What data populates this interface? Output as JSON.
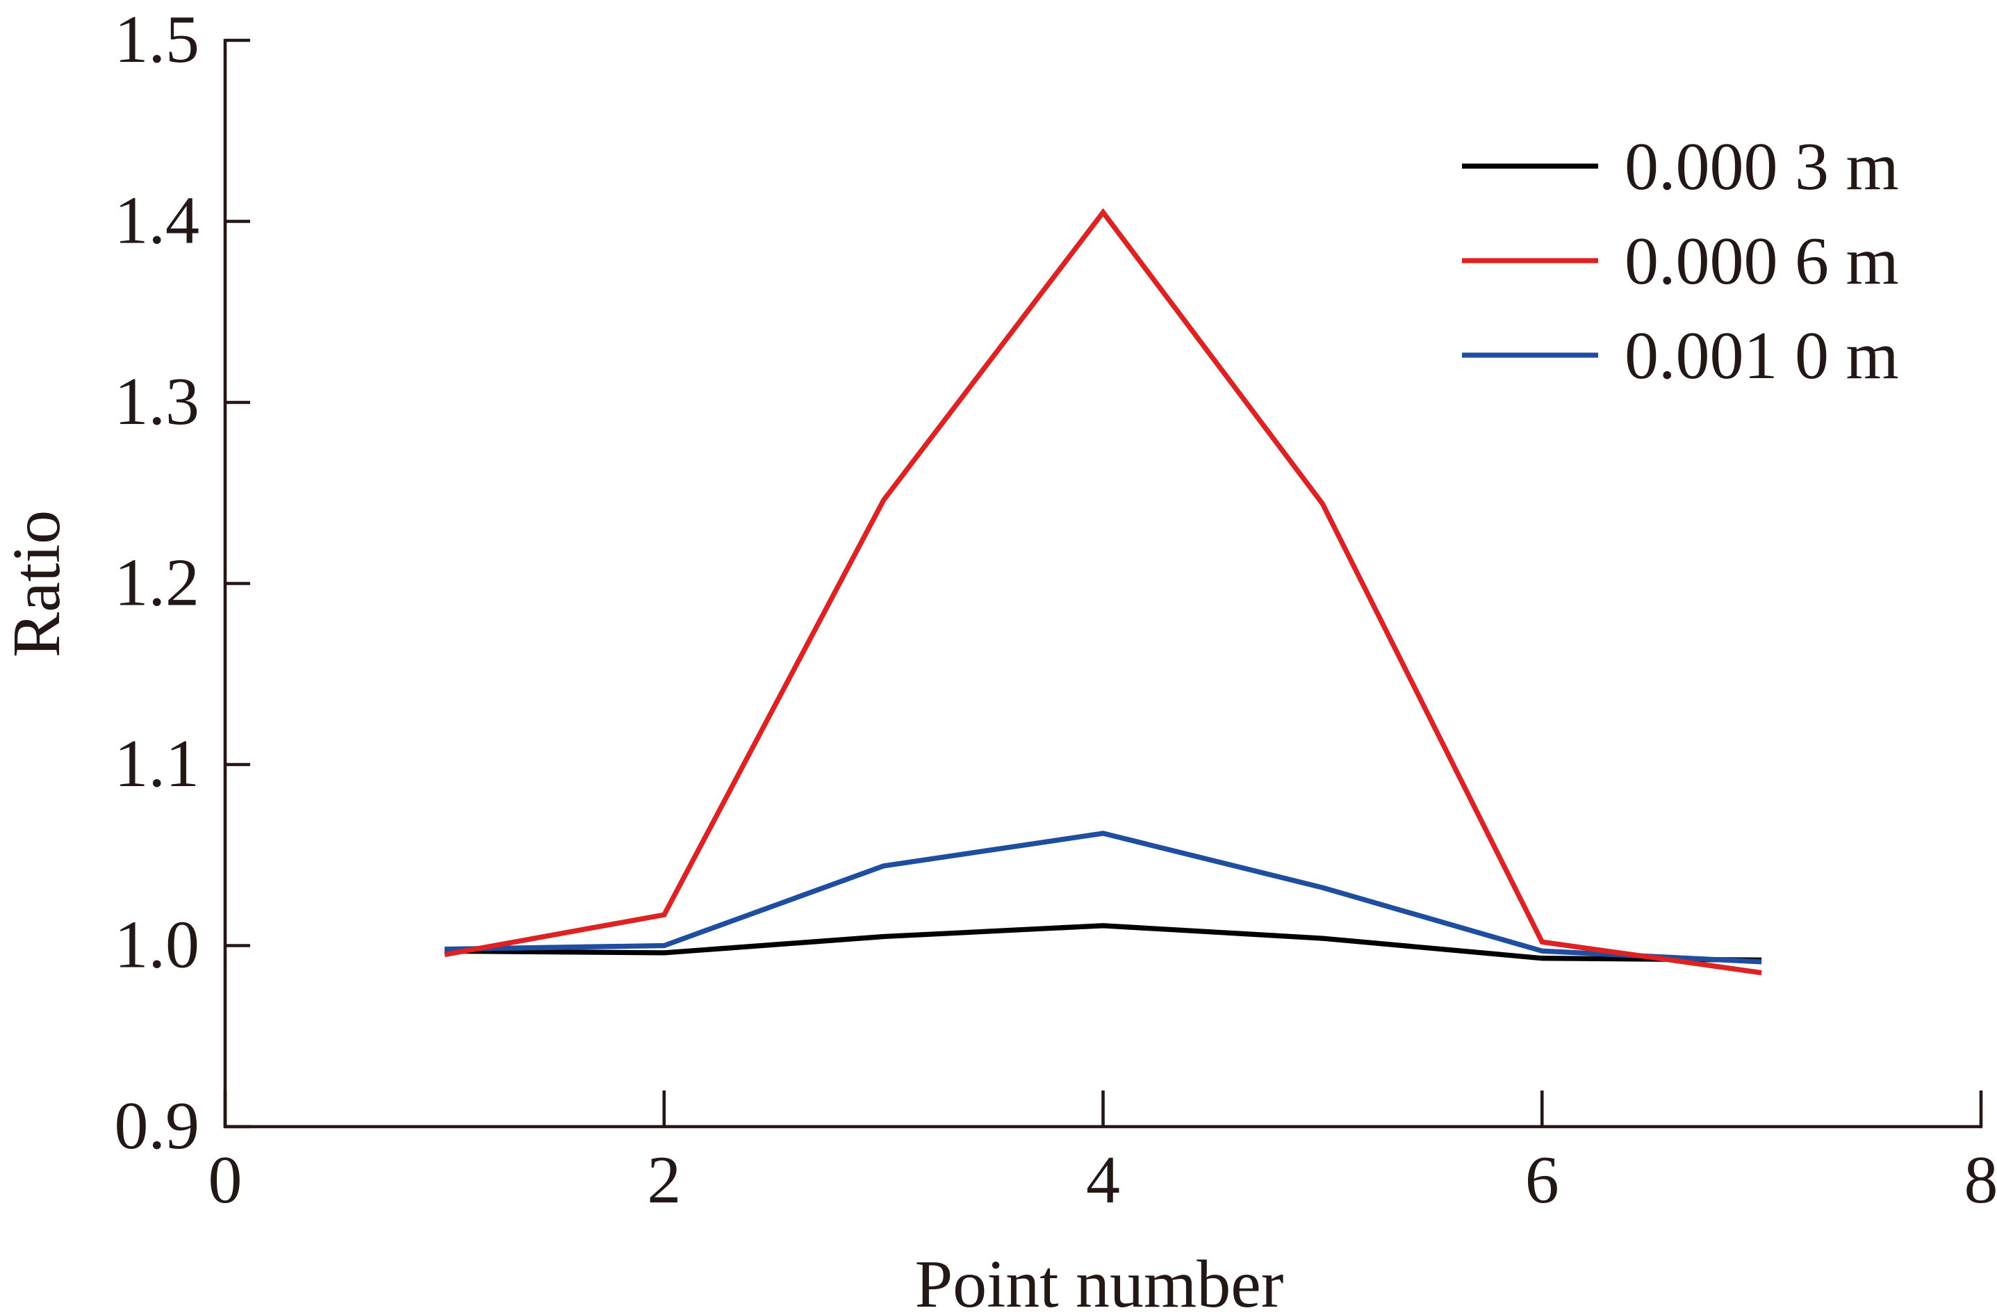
{
  "chart_data": {
    "type": "line",
    "title": "",
    "xlabel": "Point number",
    "ylabel": "Ratio",
    "xlim": [
      0,
      8
    ],
    "ylim": [
      0.9,
      1.5
    ],
    "x_ticks": [
      "0",
      "2",
      "4",
      "6",
      "8"
    ],
    "y_ticks": [
      "0.9",
      "1.0",
      "1.1",
      "1.2",
      "1.3",
      "1.4",
      "1.5"
    ],
    "x": [
      1,
      2,
      3,
      4,
      5,
      6,
      7
    ],
    "grid": false,
    "legend_position": "top-right",
    "series": [
      {
        "name": "0.000 3 m",
        "color": "#000000",
        "values": [
          0.997,
          0.996,
          1.005,
          1.011,
          1.004,
          0.993,
          0.992
        ]
      },
      {
        "name": "0.000 6 m",
        "color": "#dc2222",
        "values": [
          0.995,
          1.017,
          1.246,
          1.405,
          1.244,
          1.002,
          0.985
        ]
      },
      {
        "name": "0.001 0 m",
        "color": "#1f4ea0",
        "values": [
          0.998,
          1.0,
          1.044,
          1.062,
          1.032,
          0.997,
          0.991
        ]
      }
    ]
  }
}
